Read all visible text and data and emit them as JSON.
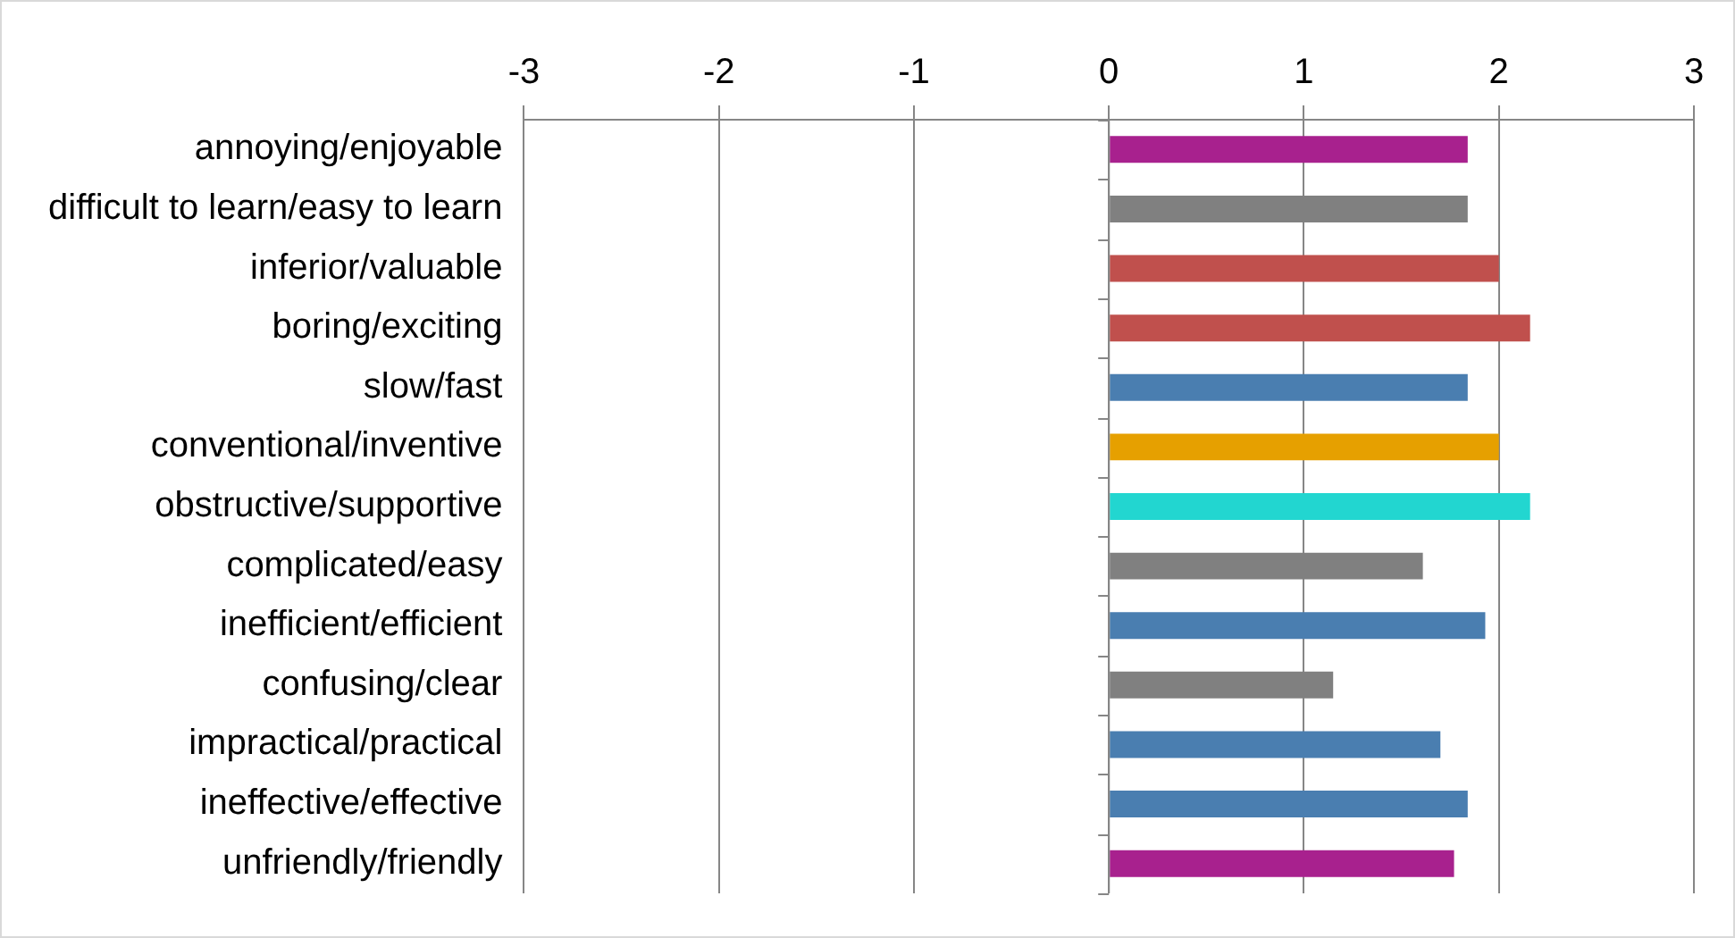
{
  "chart_data": {
    "type": "bar",
    "orientation": "horizontal",
    "categories": [
      "annoying/enjoyable",
      "difficult to learn/easy to learn",
      "inferior/valuable",
      "boring/exciting",
      "slow/fast",
      "conventional/inventive",
      "obstructive/supportive",
      "complicated/easy",
      "inefficient/efficient",
      "confusing/clear",
      "impractical/practical",
      "ineffective/effective",
      "unfriendly/friendly"
    ],
    "values": [
      1.84,
      1.84,
      2.0,
      2.16,
      1.84,
      2.0,
      2.16,
      1.61,
      1.93,
      1.15,
      1.7,
      1.84,
      1.77
    ],
    "colors": [
      "#a8218e",
      "#808080",
      "#c0504d",
      "#c0504d",
      "#4a7eb0",
      "#e6a000",
      "#22d6d0",
      "#808080",
      "#4a7eb0",
      "#808080",
      "#4a7eb0",
      "#4a7eb0",
      "#a8218e"
    ],
    "xlim": [
      -3,
      3
    ],
    "xticks": [
      -3,
      -2,
      -1,
      0,
      1,
      2,
      3
    ],
    "grid": "x",
    "legend": false
  }
}
